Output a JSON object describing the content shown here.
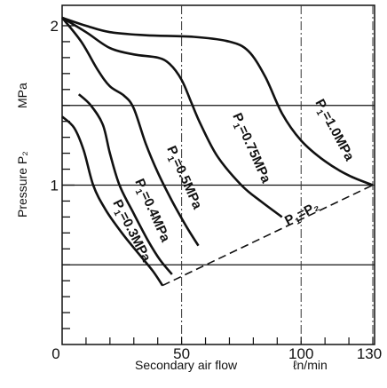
{
  "chart_data": {
    "type": "line",
    "xlabel": "Secondary air flow",
    "xunit": "ℓn/min",
    "ylabel": "Pressure P₂",
    "yunit": "MPa",
    "xlim": [
      0,
      130
    ],
    "ylim": [
      0,
      2.05
    ],
    "x_ticks": [
      {
        "value": 0,
        "label": "0"
      },
      {
        "value": 50,
        "label": "50"
      },
      {
        "value": 100,
        "label": "100"
      },
      {
        "value": 130,
        "label": "130"
      }
    ],
    "y_ticks": [
      {
        "value": 1,
        "label": "1"
      },
      {
        "value": 2,
        "label": "2"
      }
    ],
    "hgrid": [
      0.5,
      1.0,
      1.5
    ],
    "vgrid": [
      50,
      100,
      130
    ],
    "grid": "partial",
    "series": [
      {
        "name": "P₁=1.0MPa",
        "label_sub": "P",
        "label_sub_index": "1",
        "label_rest": "=1.0MPa",
        "points": [
          [
            0,
            2.05
          ],
          [
            10,
            2.0
          ],
          [
            20,
            1.96
          ],
          [
            35,
            1.94
          ],
          [
            55,
            1.93
          ],
          [
            70,
            1.9
          ],
          [
            78,
            1.84
          ],
          [
            85,
            1.68
          ],
          [
            92,
            1.45
          ],
          [
            100,
            1.28
          ],
          [
            110,
            1.15
          ],
          [
            120,
            1.06
          ],
          [
            130,
            1.0
          ]
        ]
      },
      {
        "name": "P₁=0.75MPa",
        "label_sub": "P",
        "label_sub_index": "1",
        "label_rest": "=0.75MPa",
        "points": [
          [
            0,
            2.05
          ],
          [
            10,
            1.96
          ],
          [
            20,
            1.86
          ],
          [
            30,
            1.82
          ],
          [
            40,
            1.8
          ],
          [
            45,
            1.76
          ],
          [
            50,
            1.66
          ],
          [
            54,
            1.52
          ],
          [
            58,
            1.38
          ],
          [
            65,
            1.18
          ],
          [
            75,
            1.0
          ],
          [
            83,
            0.9
          ],
          [
            92,
            0.8
          ]
        ]
      },
      {
        "name": "P₁=0.5MPa",
        "label_sub": "P",
        "label_sub_index": "1",
        "label_rest": "=0.5MPa",
        "points": [
          [
            0,
            2.05
          ],
          [
            8,
            1.9
          ],
          [
            15,
            1.72
          ],
          [
            20,
            1.62
          ],
          [
            26,
            1.56
          ],
          [
            30,
            1.48
          ],
          [
            35,
            1.26
          ],
          [
            40,
            1.08
          ],
          [
            46,
            0.9
          ],
          [
            52,
            0.74
          ],
          [
            57,
            0.62
          ]
        ]
      },
      {
        "name": "P₁=0.4MPa",
        "label_sub": "P",
        "label_sub_index": "1",
        "label_rest": "=0.4MPa",
        "points": [
          [
            7,
            1.57
          ],
          [
            12,
            1.5
          ],
          [
            17,
            1.38
          ],
          [
            20,
            1.2
          ],
          [
            24,
            1.0
          ],
          [
            30,
            0.82
          ],
          [
            36,
            0.65
          ],
          [
            41,
            0.53
          ],
          [
            46,
            0.44
          ]
        ]
      },
      {
        "name": "P₁=0.3MPa",
        "label_sub": "P",
        "label_sub_index": "1",
        "label_rest": "=0.3MPa",
        "points": [
          [
            0,
            1.43
          ],
          [
            5,
            1.36
          ],
          [
            9,
            1.22
          ],
          [
            13,
            1.0
          ],
          [
            18,
            0.85
          ],
          [
            25,
            0.7
          ],
          [
            32,
            0.57
          ],
          [
            38,
            0.46
          ],
          [
            42,
            0.37
          ]
        ]
      }
    ],
    "boundary": {
      "name": "P₁=P₂",
      "label_sub": "P",
      "label_sub_index": "1",
      "label_rest": "=P₂",
      "style": "dashed",
      "points": [
        [
          42,
          0.37
        ],
        [
          130,
          1.0
        ]
      ]
    }
  }
}
